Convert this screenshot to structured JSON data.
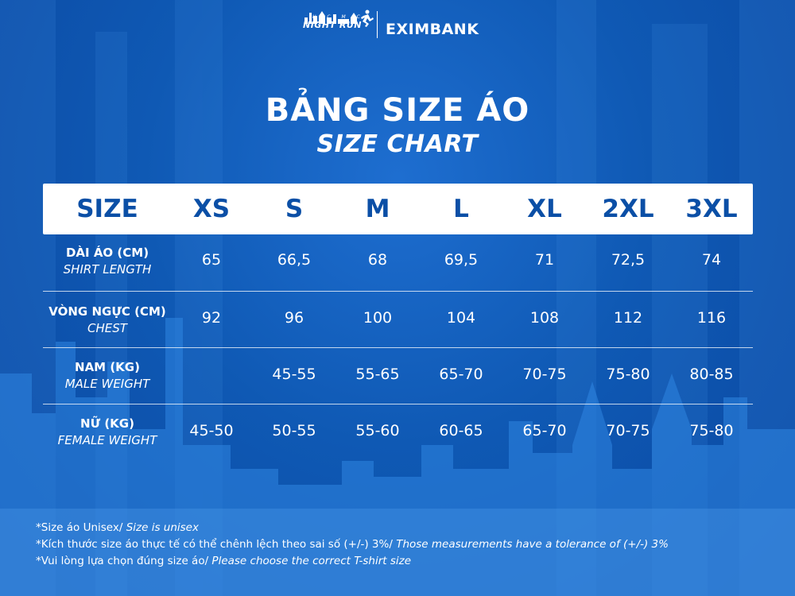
{
  "brand": {
    "event_top": "H C M C",
    "event_name": "NIGHT RUN",
    "bank_name": "EXIMBANK"
  },
  "title": "BẢNG SIZE ÁO",
  "subtitle": "SIZE CHART",
  "table": {
    "header": [
      "SIZE",
      "XS",
      "S",
      "M",
      "L",
      "XL",
      "2XL",
      "3XL"
    ],
    "rows": [
      {
        "label_vi": "DÀI ÁO (CM)",
        "label_en": "SHIRT LENGTH",
        "values": [
          "65",
          "66,5",
          "68",
          "69,5",
          "71",
          "72,5",
          "74"
        ]
      },
      {
        "label_vi": "VÒNG NGỰC (CM)",
        "label_en": "CHEST",
        "values": [
          "92",
          "96",
          "100",
          "104",
          "108",
          "112",
          "116"
        ]
      },
      {
        "label_vi": "NAM (KG)",
        "label_en": "MALE WEIGHT",
        "values": [
          "",
          "45-55",
          "55-65",
          "65-70",
          "70-75",
          "75-80",
          "80-85"
        ]
      },
      {
        "label_vi": "NỮ (KG)",
        "label_en": "FEMALE WEIGHT",
        "values": [
          "45-50",
          "50-55",
          "55-60",
          "60-65",
          "65-70",
          "70-75",
          "75-80"
        ]
      }
    ]
  },
  "notes": [
    {
      "vi": "*Size áo Unisex/",
      "en": " Size is unisex"
    },
    {
      "vi": "*Kích thước size áo thực tế có thể chênh lệch theo sai số (+/-) 3%/",
      "en": " Those measurements have a tolerance of (+/-) 3%"
    },
    {
      "vi": "*Vui lòng lựa chọn đúng size áo/",
      "en": " Please choose the correct T-shirt size"
    }
  ],
  "colors": {
    "background": "#0b4fa6",
    "header_text": "#0b4fa6",
    "text": "#ffffff"
  }
}
